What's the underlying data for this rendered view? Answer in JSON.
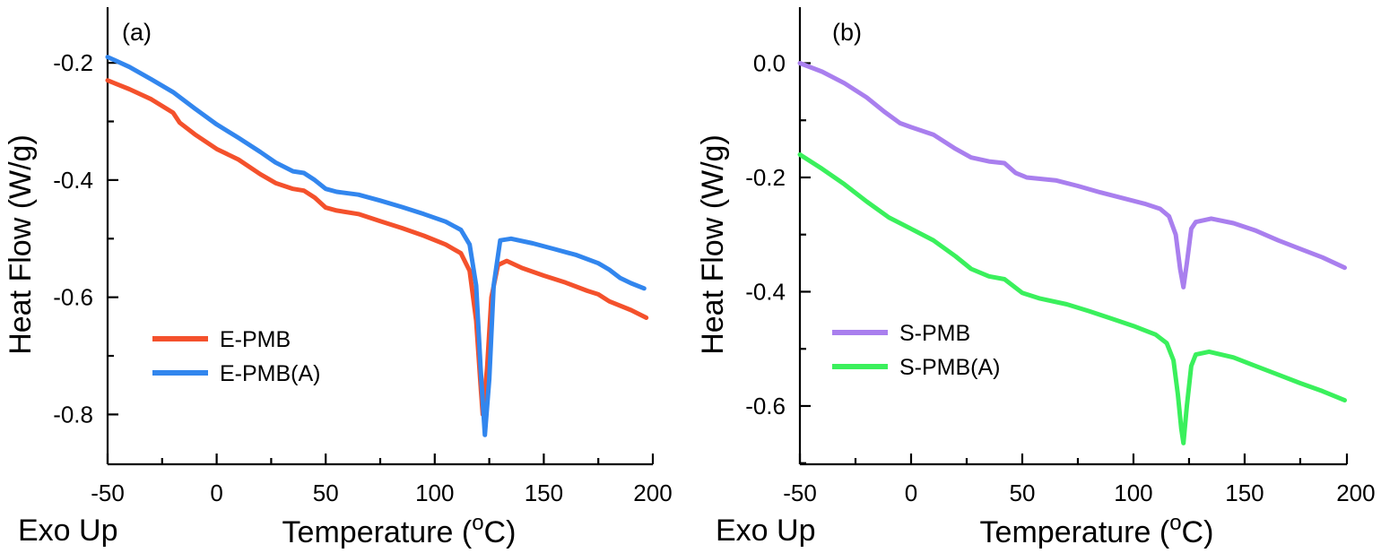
{
  "chart_data": [
    {
      "type": "line",
      "panel_label": "(a)",
      "xlabel": "Temperature (",
      "xlabel_sup": "o",
      "xlabel_tail": "C)",
      "ylabel": "Heat Flow (W/g)",
      "corner_note": "Exo Up",
      "xlim": [
        -50,
        200
      ],
      "ylim": [
        -0.885,
        -0.105
      ],
      "x_ticks": [
        -50,
        0,
        50,
        100,
        150,
        200
      ],
      "x_tick_labels": [
        "-50",
        "0",
        "50",
        "100",
        "150",
        "200"
      ],
      "y_ticks": [
        -0.2,
        -0.4,
        -0.6,
        -0.8
      ],
      "y_tick_labels": [
        "-0.2",
        "-0.4",
        "-0.6",
        "-0.8"
      ],
      "legend_position": "bottom-left",
      "series": [
        {
          "name": "E-PMB",
          "color": "#f4512c",
          "points": [
            [
              -50,
              -0.23
            ],
            [
              -40,
              -0.245
            ],
            [
              -30,
              -0.262
            ],
            [
              -20,
              -0.285
            ],
            [
              -17,
              -0.302
            ],
            [
              -10,
              -0.322
            ],
            [
              0,
              -0.347
            ],
            [
              10,
              -0.365
            ],
            [
              20,
              -0.39
            ],
            [
              27,
              -0.405
            ],
            [
              35,
              -0.415
            ],
            [
              40,
              -0.418
            ],
            [
              45,
              -0.43
            ],
            [
              50,
              -0.447
            ],
            [
              55,
              -0.452
            ],
            [
              65,
              -0.458
            ],
            [
              75,
              -0.47
            ],
            [
              85,
              -0.482
            ],
            [
              95,
              -0.495
            ],
            [
              105,
              -0.51
            ],
            [
              112,
              -0.525
            ],
            [
              116,
              -0.555
            ],
            [
              119,
              -0.64
            ],
            [
              121,
              -0.75
            ],
            [
              122,
              -0.8
            ],
            [
              124,
              -0.72
            ],
            [
              126,
              -0.6
            ],
            [
              129,
              -0.545
            ],
            [
              133,
              -0.538
            ],
            [
              140,
              -0.55
            ],
            [
              150,
              -0.563
            ],
            [
              160,
              -0.575
            ],
            [
              170,
              -0.589
            ],
            [
              175,
              -0.595
            ],
            [
              180,
              -0.607
            ],
            [
              190,
              -0.622
            ],
            [
              197,
              -0.635
            ]
          ]
        },
        {
          "name": "E-PMB(A)",
          "color": "#3286ee",
          "points": [
            [
              -50,
              -0.19
            ],
            [
              -40,
              -0.207
            ],
            [
              -30,
              -0.228
            ],
            [
              -20,
              -0.25
            ],
            [
              -10,
              -0.278
            ],
            [
              0,
              -0.305
            ],
            [
              10,
              -0.328
            ],
            [
              20,
              -0.352
            ],
            [
              27,
              -0.37
            ],
            [
              35,
              -0.385
            ],
            [
              40,
              -0.388
            ],
            [
              45,
              -0.4
            ],
            [
              50,
              -0.415
            ],
            [
              55,
              -0.42
            ],
            [
              65,
              -0.425
            ],
            [
              75,
              -0.435
            ],
            [
              85,
              -0.446
            ],
            [
              95,
              -0.458
            ],
            [
              105,
              -0.471
            ],
            [
              112,
              -0.485
            ],
            [
              116,
              -0.51
            ],
            [
              119,
              -0.58
            ],
            [
              121,
              -0.72
            ],
            [
              123,
              -0.835
            ],
            [
              125,
              -0.74
            ],
            [
              127,
              -0.58
            ],
            [
              130,
              -0.503
            ],
            [
              135,
              -0.5
            ],
            [
              145,
              -0.508
            ],
            [
              155,
              -0.518
            ],
            [
              165,
              -0.528
            ],
            [
              175,
              -0.542
            ],
            [
              180,
              -0.553
            ],
            [
              185,
              -0.567
            ],
            [
              190,
              -0.576
            ],
            [
              196,
              -0.585
            ]
          ]
        }
      ]
    },
    {
      "type": "line",
      "panel_label": "(b)",
      "xlabel": "Temperature (",
      "xlabel_sup": "o",
      "xlabel_tail": "C)",
      "ylabel": "Heat Flow (W/g)",
      "corner_note": "Exo Up",
      "xlim": [
        -50,
        196
      ],
      "ylim": [
        -0.702,
        0.098
      ],
      "x_ticks": [
        -50,
        0,
        50,
        100,
        150,
        200
      ],
      "x_tick_labels": [
        "-50",
        "0",
        "50",
        "100",
        "150",
        "200"
      ],
      "y_ticks": [
        0.0,
        -0.2,
        -0.4,
        -0.6
      ],
      "y_tick_labels": [
        "0.0",
        "-0.2",
        "-0.4",
        "-0.6"
      ],
      "legend_position": "bottom-left",
      "series": [
        {
          "name": "S-PMB",
          "color": "#a97fee",
          "points": [
            [
              -50,
              0.0
            ],
            [
              -40,
              -0.015
            ],
            [
              -30,
              -0.035
            ],
            [
              -20,
              -0.06
            ],
            [
              -12,
              -0.085
            ],
            [
              -5,
              -0.105
            ],
            [
              0,
              -0.112
            ],
            [
              10,
              -0.125
            ],
            [
              20,
              -0.15
            ],
            [
              27,
              -0.165
            ],
            [
              35,
              -0.172
            ],
            [
              42,
              -0.175
            ],
            [
              47,
              -0.192
            ],
            [
              52,
              -0.2
            ],
            [
              65,
              -0.205
            ],
            [
              75,
              -0.215
            ],
            [
              85,
              -0.226
            ],
            [
              95,
              -0.236
            ],
            [
              105,
              -0.246
            ],
            [
              112,
              -0.255
            ],
            [
              116,
              -0.268
            ],
            [
              119,
              -0.3
            ],
            [
              121,
              -0.36
            ],
            [
              122.5,
              -0.392
            ],
            [
              124,
              -0.35
            ],
            [
              126,
              -0.29
            ],
            [
              128,
              -0.278
            ],
            [
              135,
              -0.272
            ],
            [
              145,
              -0.28
            ],
            [
              155,
              -0.293
            ],
            [
              165,
              -0.31
            ],
            [
              175,
              -0.325
            ],
            [
              185,
              -0.34
            ],
            [
              195,
              -0.358
            ]
          ]
        },
        {
          "name": "S-PMB(A)",
          "color": "#3af05c",
          "points": [
            [
              -50,
              -0.16
            ],
            [
              -40,
              -0.185
            ],
            [
              -30,
              -0.212
            ],
            [
              -20,
              -0.242
            ],
            [
              -10,
              -0.27
            ],
            [
              0,
              -0.29
            ],
            [
              10,
              -0.31
            ],
            [
              20,
              -0.338
            ],
            [
              27,
              -0.36
            ],
            [
              35,
              -0.373
            ],
            [
              42,
              -0.378
            ],
            [
              45,
              -0.387
            ],
            [
              50,
              -0.402
            ],
            [
              58,
              -0.412
            ],
            [
              70,
              -0.422
            ],
            [
              80,
              -0.434
            ],
            [
              90,
              -0.447
            ],
            [
              100,
              -0.46
            ],
            [
              110,
              -0.475
            ],
            [
              115,
              -0.49
            ],
            [
              118,
              -0.52
            ],
            [
              120,
              -0.58
            ],
            [
              121.5,
              -0.64
            ],
            [
              122.5,
              -0.665
            ],
            [
              124,
              -0.6
            ],
            [
              126,
              -0.53
            ],
            [
              128,
              -0.51
            ],
            [
              134,
              -0.505
            ],
            [
              145,
              -0.515
            ],
            [
              155,
              -0.53
            ],
            [
              165,
              -0.545
            ],
            [
              175,
              -0.56
            ],
            [
              185,
              -0.574
            ],
            [
              195,
              -0.59
            ]
          ]
        }
      ]
    }
  ]
}
